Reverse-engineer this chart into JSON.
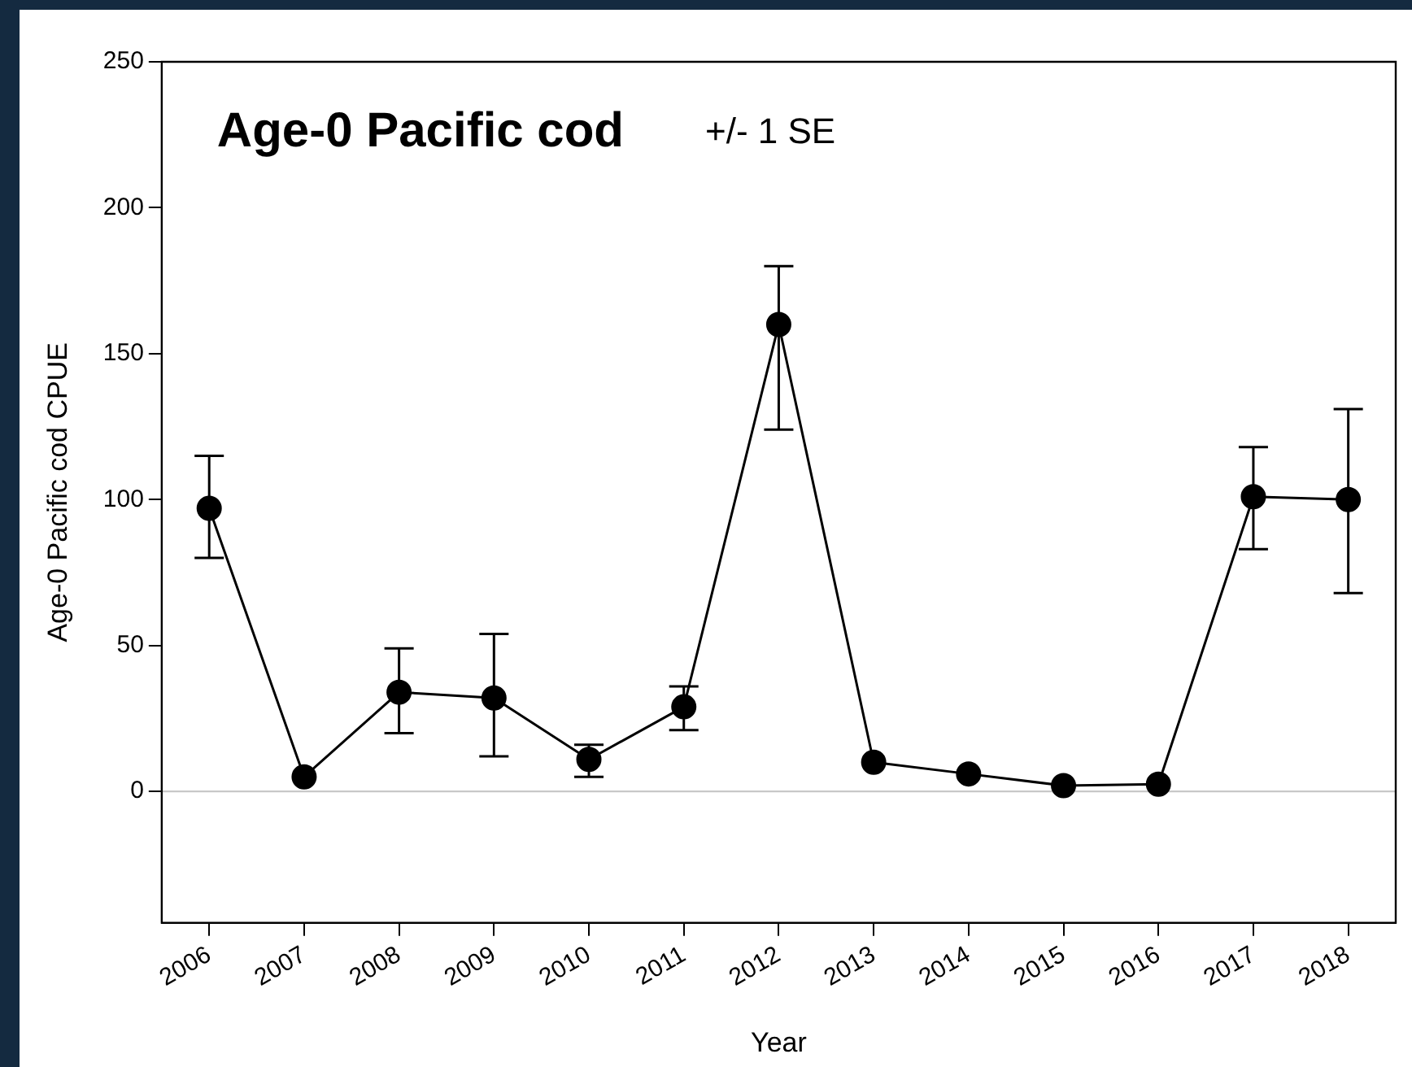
{
  "chart_data": {
    "type": "line",
    "title": "Age-0 Pacific cod",
    "annotations": [
      "+/- 1 SE"
    ],
    "xlabel": "Year",
    "ylabel": "Age-0 Pacific cod CPUE",
    "categories": [
      "2006",
      "2007",
      "2008",
      "2009",
      "2010",
      "2011",
      "2012",
      "2013",
      "2014",
      "2015",
      "2016",
      "2017",
      "2018"
    ],
    "series": [
      {
        "color": "#000000",
        "values": [
          97,
          5,
          34,
          32,
          11,
          29,
          160,
          10,
          6,
          2,
          2.5,
          101,
          100
        ],
        "errors": [
          [
            80,
            115
          ],
          null,
          [
            20,
            49
          ],
          [
            12,
            54
          ],
          [
            5,
            16
          ],
          [
            21,
            36
          ],
          [
            124,
            180
          ],
          null,
          null,
          null,
          null,
          [
            83,
            118
          ],
          [
            68,
            131
          ]
        ]
      }
    ],
    "ylim": [
      -45,
      250
    ],
    "yticks": [
      0,
      50,
      100,
      150,
      200,
      250
    ],
    "ref_lines": [
      {
        "axis": "y",
        "value": 0,
        "color": "#c8c8c8"
      }
    ],
    "marker": "circle",
    "line_style": "solid",
    "grid": false,
    "legend": false
  }
}
